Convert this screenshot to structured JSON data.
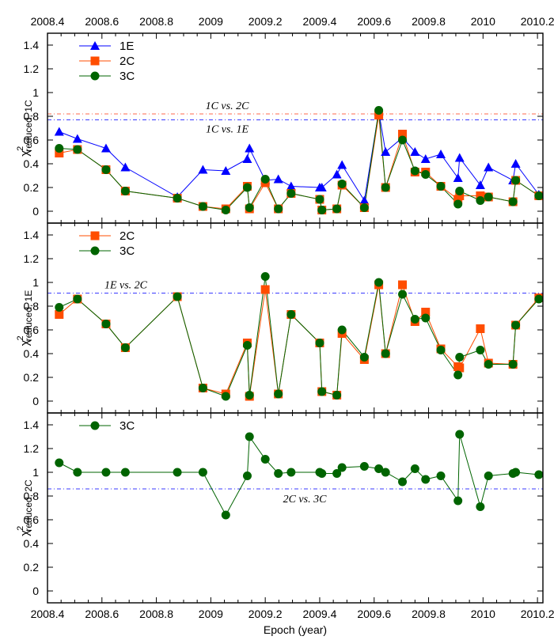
{
  "chart_data": [
    {
      "type": "line",
      "panel": "top",
      "ylabel": "χ²reduced, 1C",
      "ylim": [
        -0.1,
        1.5
      ],
      "yticks": [
        "0",
        "0.2",
        "0.4",
        "0.6",
        "0.8",
        "1",
        "1.2",
        "1.4"
      ],
      "legend_position": "top-left",
      "reference_lines": [
        {
          "value": 0.82,
          "label": "1C vs. 2C",
          "color": "#ff6a4d"
        },
        {
          "value": 0.77,
          "label": "1C vs. 1E",
          "color": "#3a3aff"
        }
      ],
      "series": [
        {
          "name": "1E",
          "color": "#0000ff",
          "marker": "triangle",
          "x": [
            2008.443,
            2008.51,
            2008.615,
            2008.686,
            2008.877,
            2008.971,
            2009.055,
            2009.134,
            2009.142,
            2009.2,
            2009.248,
            2009.295,
            2009.4,
            2009.408,
            2009.463,
            2009.482,
            2009.564,
            2009.617,
            2009.642,
            2009.704,
            2009.75,
            2009.789,
            2009.845,
            2009.908,
            2009.914,
            2009.99,
            2010.02,
            2010.11,
            2010.12,
            2010.205
          ],
          "y": [
            0.67,
            0.61,
            0.53,
            0.37,
            0.12,
            0.35,
            0.34,
            0.44,
            0.53,
            0.26,
            0.27,
            0.21,
            0.2,
            0.2,
            0.31,
            0.39,
            0.09,
            0.84,
            0.5,
            0.62,
            0.5,
            0.44,
            0.48,
            0.28,
            0.45,
            0.22,
            0.37,
            0.26,
            0.4,
            0.14
          ]
        },
        {
          "name": "2C",
          "color": "#ff4d00",
          "marker": "square",
          "x": [
            2008.443,
            2008.51,
            2008.615,
            2008.686,
            2008.877,
            2008.971,
            2009.055,
            2009.134,
            2009.142,
            2009.2,
            2009.248,
            2009.295,
            2009.4,
            2009.408,
            2009.463,
            2009.482,
            2009.564,
            2009.617,
            2009.642,
            2009.704,
            2009.75,
            2009.789,
            2009.845,
            2009.908,
            2009.914,
            2009.99,
            2010.02,
            2010.11,
            2010.12,
            2010.205
          ],
          "y": [
            0.49,
            0.52,
            0.35,
            0.17,
            0.11,
            0.04,
            0.02,
            0.21,
            0.02,
            0.24,
            0.02,
            0.15,
            0.1,
            0.01,
            0.02,
            0.22,
            0.03,
            0.81,
            0.2,
            0.65,
            0.33,
            0.33,
            0.21,
            0.1,
            0.13,
            0.13,
            0.12,
            0.08,
            0.26,
            0.13
          ]
        },
        {
          "name": "3C",
          "color": "#006400",
          "marker": "circle",
          "x": [
            2008.443,
            2008.51,
            2008.615,
            2008.686,
            2008.877,
            2008.971,
            2009.055,
            2009.134,
            2009.142,
            2009.2,
            2009.248,
            2009.295,
            2009.4,
            2009.408,
            2009.463,
            2009.482,
            2009.564,
            2009.617,
            2009.642,
            2009.704,
            2009.75,
            2009.789,
            2009.845,
            2009.908,
            2009.914,
            2009.99,
            2010.02,
            2010.11,
            2010.12,
            2010.205
          ],
          "y": [
            0.53,
            0.52,
            0.35,
            0.17,
            0.11,
            0.04,
            0.01,
            0.2,
            0.03,
            0.27,
            0.02,
            0.15,
            0.1,
            0.01,
            0.02,
            0.23,
            0.03,
            0.85,
            0.2,
            0.6,
            0.34,
            0.31,
            0.21,
            0.06,
            0.17,
            0.09,
            0.12,
            0.08,
            0.26,
            0.13
          ]
        }
      ]
    },
    {
      "type": "line",
      "panel": "middle",
      "ylabel": "χ²reduced, 1E",
      "ylim": [
        -0.1,
        1.5
      ],
      "yticks": [
        "0",
        "0.2",
        "0.4",
        "0.6",
        "0.8",
        "1",
        "1.2",
        "1.4"
      ],
      "legend_position": "top-left",
      "reference_lines": [
        {
          "value": 0.91,
          "label": "1E vs. 2C",
          "color": "#3a3aff"
        }
      ],
      "series": [
        {
          "name": "2C",
          "color": "#ff4d00",
          "marker": "square",
          "x": [
            2008.443,
            2008.51,
            2008.615,
            2008.686,
            2008.877,
            2008.971,
            2009.055,
            2009.134,
            2009.142,
            2009.2,
            2009.248,
            2009.295,
            2009.4,
            2009.408,
            2009.463,
            2009.482,
            2009.564,
            2009.617,
            2009.642,
            2009.704,
            2009.75,
            2009.789,
            2009.845,
            2009.908,
            2009.914,
            2009.99,
            2010.02,
            2010.11,
            2010.12,
            2010.205
          ],
          "y": [
            0.73,
            0.86,
            0.65,
            0.45,
            0.88,
            0.11,
            0.06,
            0.49,
            0.04,
            0.94,
            0.06,
            0.73,
            0.49,
            0.08,
            0.05,
            0.57,
            0.35,
            0.98,
            0.4,
            0.98,
            0.67,
            0.75,
            0.44,
            0.29,
            0.28,
            0.61,
            0.32,
            0.31,
            0.64,
            0.87
          ]
        },
        {
          "name": "3C",
          "color": "#006400",
          "marker": "circle",
          "x": [
            2008.443,
            2008.51,
            2008.615,
            2008.686,
            2008.877,
            2008.971,
            2009.055,
            2009.134,
            2009.142,
            2009.2,
            2009.248,
            2009.295,
            2009.4,
            2009.408,
            2009.463,
            2009.482,
            2009.564,
            2009.617,
            2009.642,
            2009.704,
            2009.75,
            2009.789,
            2009.845,
            2009.908,
            2009.914,
            2009.99,
            2010.02,
            2010.11,
            2010.12,
            2010.205
          ],
          "y": [
            0.79,
            0.86,
            0.65,
            0.45,
            0.88,
            0.11,
            0.04,
            0.47,
            0.05,
            1.05,
            0.06,
            0.73,
            0.49,
            0.08,
            0.05,
            0.6,
            0.37,
            1.0,
            0.4,
            0.9,
            0.69,
            0.7,
            0.43,
            0.22,
            0.37,
            0.43,
            0.31,
            0.31,
            0.64,
            0.86
          ]
        }
      ]
    },
    {
      "type": "line",
      "panel": "bottom",
      "ylabel": "χ²reduced, 2C",
      "xlabel": "Epoch (year)",
      "ylim": [
        -0.1,
        1.5
      ],
      "xlim": [
        2008.4,
        2010.22
      ],
      "yticks": [
        "0",
        "0.2",
        "0.4",
        "0.6",
        "0.8",
        "1",
        "1.2",
        "1.4"
      ],
      "xticks": [
        "2008.4",
        "2008.6",
        "2008.8",
        "2009",
        "2009.2",
        "2009.4",
        "2009.6",
        "2009.8",
        "2010",
        "2010.2"
      ],
      "legend_position": "top-left",
      "reference_lines": [
        {
          "value": 0.86,
          "label": "2C vs. 3C",
          "color": "#3a3aff"
        }
      ],
      "series": [
        {
          "name": "3C",
          "color": "#006400",
          "marker": "circle",
          "x": [
            2008.443,
            2008.51,
            2008.615,
            2008.686,
            2008.877,
            2008.971,
            2009.055,
            2009.134,
            2009.142,
            2009.2,
            2009.248,
            2009.295,
            2009.4,
            2009.408,
            2009.463,
            2009.482,
            2009.564,
            2009.617,
            2009.642,
            2009.704,
            2009.75,
            2009.789,
            2009.845,
            2009.908,
            2009.914,
            2009.99,
            2010.02,
            2010.11,
            2010.12,
            2010.205
          ],
          "y": [
            1.08,
            1.0,
            1.0,
            1.0,
            1.0,
            1.0,
            0.64,
            0.97,
            1.3,
            1.11,
            0.99,
            1.0,
            1.0,
            0.99,
            0.99,
            1.04,
            1.05,
            1.03,
            1.0,
            0.92,
            1.03,
            0.94,
            0.97,
            0.76,
            1.32,
            0.71,
            0.97,
            0.99,
            1.0,
            0.98
          ]
        }
      ]
    }
  ]
}
